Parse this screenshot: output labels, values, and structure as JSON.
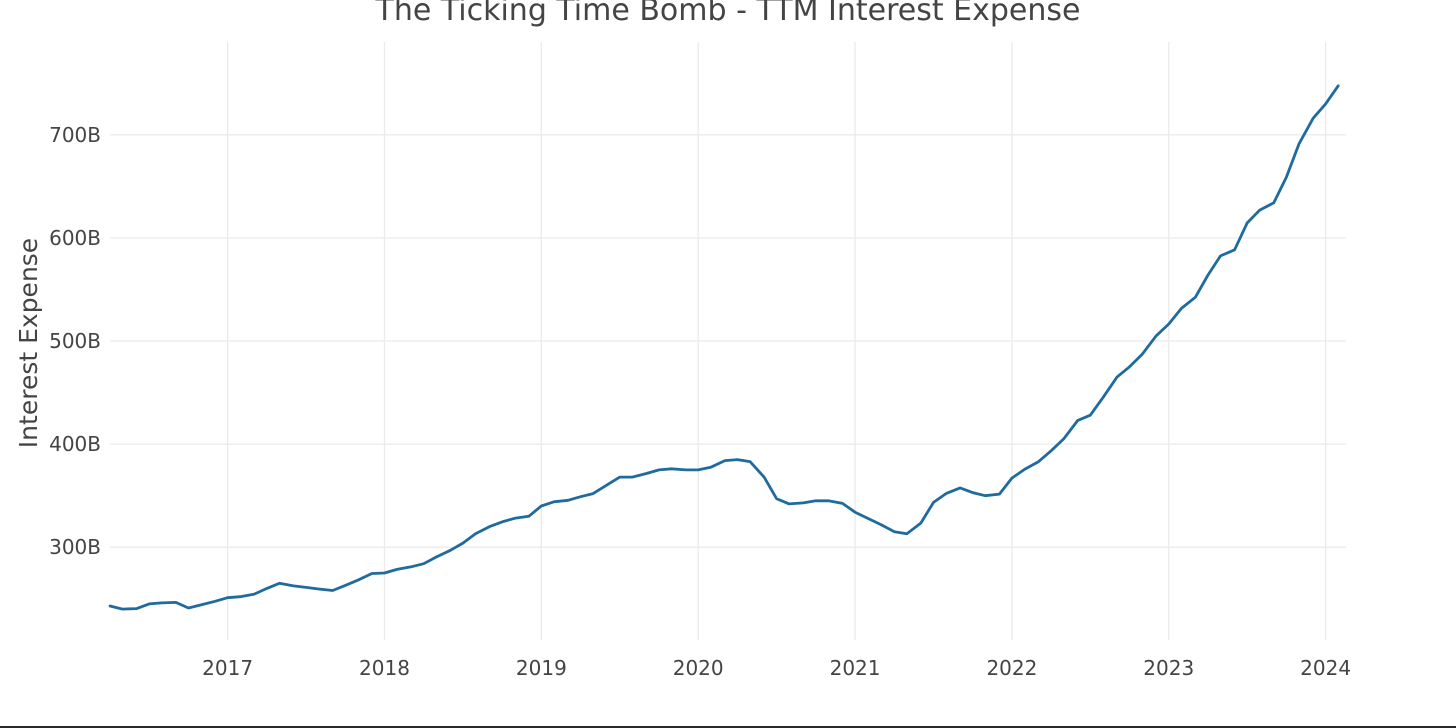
{
  "chart_data": {
    "type": "line",
    "title": "The Ticking Time Bomb - TTM Interest Expense",
    "xlabel": "",
    "ylabel": "Interest Expense",
    "x_ticks": [
      {
        "value": 2017,
        "label": "2017"
      },
      {
        "value": 2018,
        "label": "2018"
      },
      {
        "value": 2019,
        "label": "2019"
      },
      {
        "value": 2020,
        "label": "2020"
      },
      {
        "value": 2021,
        "label": "2021"
      },
      {
        "value": 2022,
        "label": "2022"
      },
      {
        "value": 2023,
        "label": "2023"
      },
      {
        "value": 2024,
        "label": "2024"
      }
    ],
    "y_ticks": [
      {
        "value": 300,
        "label": "300B"
      },
      {
        "value": 400,
        "label": "400B"
      },
      {
        "value": 500,
        "label": "500B"
      },
      {
        "value": 600,
        "label": "600B"
      },
      {
        "value": 700,
        "label": "700B"
      }
    ],
    "xlim": [
      2016.25,
      2024.13
    ],
    "ylim": [
      210,
      790
    ],
    "grid": true,
    "series": [
      {
        "name": "TTM Interest Expense",
        "color": "#1f6b9e",
        "points": [
          [
            2016.25,
            243
          ],
          [
            2016.33,
            240
          ],
          [
            2016.42,
            240.5
          ],
          [
            2016.5,
            245
          ],
          [
            2016.58,
            246
          ],
          [
            2016.67,
            246.5
          ],
          [
            2016.75,
            241
          ],
          [
            2016.83,
            244
          ],
          [
            2016.92,
            247.5
          ],
          [
            2017.0,
            251
          ],
          [
            2017.08,
            252
          ],
          [
            2017.17,
            254.5
          ],
          [
            2017.25,
            260
          ],
          [
            2017.33,
            265
          ],
          [
            2017.42,
            262.5
          ],
          [
            2017.5,
            261
          ],
          [
            2017.58,
            259.5
          ],
          [
            2017.67,
            258
          ],
          [
            2017.75,
            263
          ],
          [
            2017.83,
            268
          ],
          [
            2017.92,
            274.5
          ],
          [
            2018.0,
            275
          ],
          [
            2018.08,
            278.5
          ],
          [
            2018.17,
            281
          ],
          [
            2018.25,
            284
          ],
          [
            2018.33,
            290.5
          ],
          [
            2018.42,
            297
          ],
          [
            2018.5,
            304
          ],
          [
            2018.58,
            313
          ],
          [
            2018.67,
            320
          ],
          [
            2018.75,
            324.5
          ],
          [
            2018.83,
            328
          ],
          [
            2018.92,
            330
          ],
          [
            2019.0,
            340
          ],
          [
            2019.08,
            344
          ],
          [
            2019.17,
            345.5
          ],
          [
            2019.25,
            349
          ],
          [
            2019.33,
            352
          ],
          [
            2019.42,
            360.5
          ],
          [
            2019.5,
            368
          ],
          [
            2019.58,
            368
          ],
          [
            2019.67,
            371.5
          ],
          [
            2019.75,
            375
          ],
          [
            2019.83,
            376
          ],
          [
            2019.92,
            375
          ],
          [
            2020.0,
            375
          ],
          [
            2020.08,
            377.5
          ],
          [
            2020.17,
            384
          ],
          [
            2020.25,
            385
          ],
          [
            2020.33,
            383
          ],
          [
            2020.42,
            368
          ],
          [
            2020.5,
            347
          ],
          [
            2020.58,
            342
          ],
          [
            2020.67,
            343
          ],
          [
            2020.75,
            345
          ],
          [
            2020.83,
            345
          ],
          [
            2020.92,
            342.5
          ],
          [
            2021.0,
            334
          ],
          [
            2021.08,
            328
          ],
          [
            2021.17,
            321.5
          ],
          [
            2021.25,
            315
          ],
          [
            2021.33,
            313
          ],
          [
            2021.42,
            323.5
          ],
          [
            2021.5,
            343.5
          ],
          [
            2021.58,
            352
          ],
          [
            2021.67,
            357.5
          ],
          [
            2021.75,
            353
          ],
          [
            2021.83,
            350
          ],
          [
            2021.92,
            351.5
          ],
          [
            2022.0,
            367
          ],
          [
            2022.08,
            375.5
          ],
          [
            2022.17,
            383
          ],
          [
            2022.25,
            393.5
          ],
          [
            2022.33,
            405
          ],
          [
            2022.42,
            423
          ],
          [
            2022.5,
            428
          ],
          [
            2022.58,
            445
          ],
          [
            2022.67,
            465
          ],
          [
            2022.75,
            475
          ],
          [
            2022.83,
            487
          ],
          [
            2022.92,
            505
          ],
          [
            2023.0,
            516.5
          ],
          [
            2023.08,
            531.5
          ],
          [
            2023.17,
            542.5
          ],
          [
            2023.25,
            564
          ],
          [
            2023.33,
            582.5
          ],
          [
            2023.42,
            588.5
          ],
          [
            2023.5,
            614.5
          ],
          [
            2023.58,
            627
          ],
          [
            2023.67,
            634
          ],
          [
            2023.75,
            659
          ],
          [
            2023.83,
            691
          ],
          [
            2023.92,
            716
          ],
          [
            2024.0,
            730
          ],
          [
            2024.08,
            747.5
          ]
        ]
      }
    ]
  }
}
